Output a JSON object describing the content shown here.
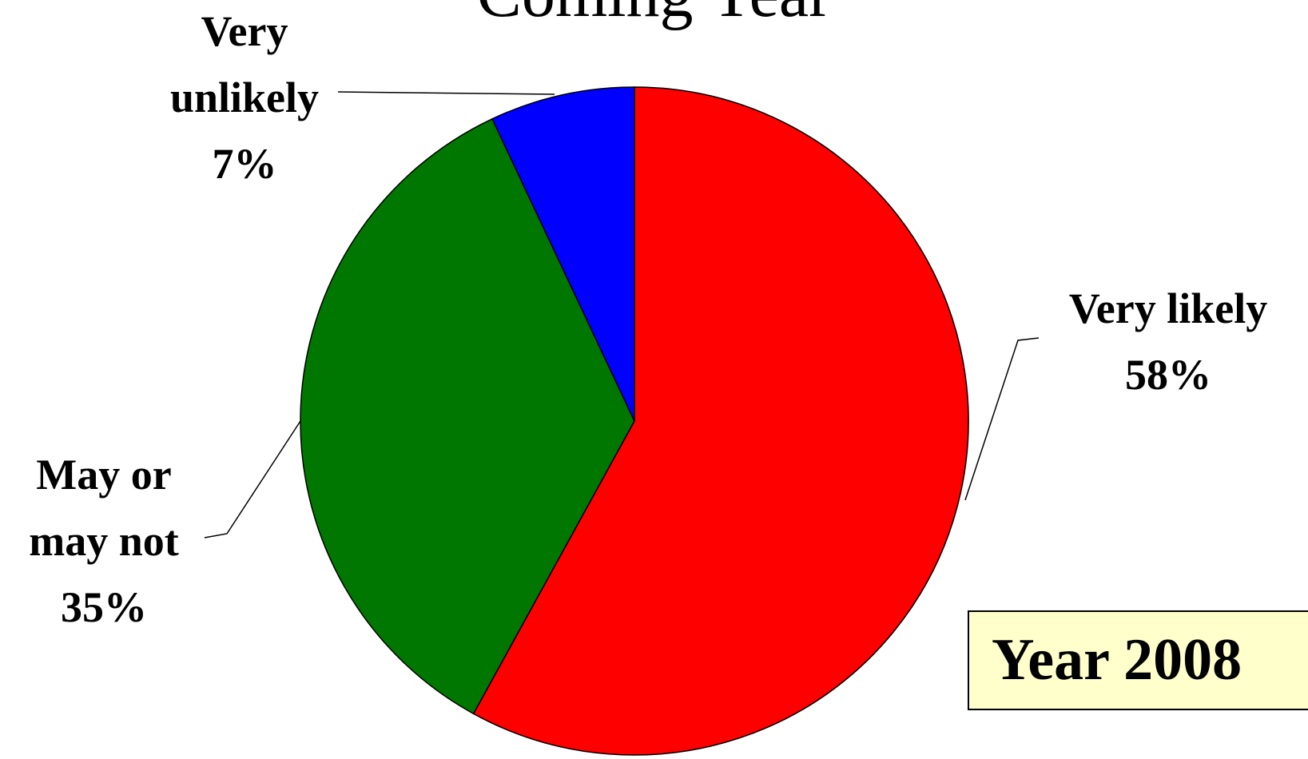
{
  "chart_data": {
    "type": "pie",
    "title": "Coming Year",
    "categories": [
      "Very likely",
      "May or may not",
      "Very unlikely"
    ],
    "values": [
      58,
      35,
      7
    ],
    "value_labels": [
      "58%",
      "35%",
      "7%"
    ],
    "colors": [
      "#ff0000",
      "#007700",
      "#0000ff"
    ],
    "annotation": "Year 2008"
  }
}
